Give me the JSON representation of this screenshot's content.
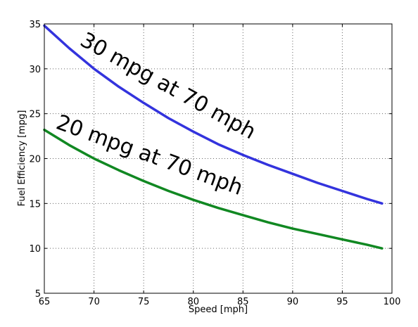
{
  "chart_data": {
    "type": "line",
    "title": "",
    "xlabel": "Speed [mph]",
    "ylabel": "Fuel Efficiency [mpg]",
    "xlim": [
      65,
      100
    ],
    "ylim": [
      5,
      35
    ],
    "xticks": [
      65,
      70,
      75,
      80,
      85,
      90,
      95,
      100
    ],
    "yticks": [
      5,
      10,
      15,
      20,
      25,
      30,
      35
    ],
    "grid": true,
    "legend": false,
    "series": [
      {
        "color": "#3333dd",
        "x": [
          65,
          67.5,
          70,
          72.5,
          75,
          77.5,
          80,
          82.5,
          85,
          87.5,
          90,
          92.5,
          95,
          97.5,
          99
        ],
        "values": [
          34.8,
          32.3,
          30.0,
          28.0,
          26.2,
          24.5,
          23.0,
          21.6,
          20.4,
          19.3,
          18.3,
          17.3,
          16.4,
          15.5,
          15.0
        ]
      },
      {
        "color": "#118822",
        "x": [
          65,
          67.5,
          70,
          72.5,
          75,
          77.5,
          80,
          82.5,
          85,
          87.5,
          90,
          92.5,
          95,
          97.5,
          99
        ],
        "values": [
          23.2,
          21.5,
          20.0,
          18.7,
          17.5,
          16.4,
          15.4,
          14.5,
          13.7,
          12.9,
          12.2,
          11.6,
          11.0,
          10.4,
          10.0
        ]
      }
    ],
    "annotations": [
      {
        "text": "30 mpg at 70 mph"
      },
      {
        "text": "20 mpg at 70 mph"
      }
    ]
  }
}
